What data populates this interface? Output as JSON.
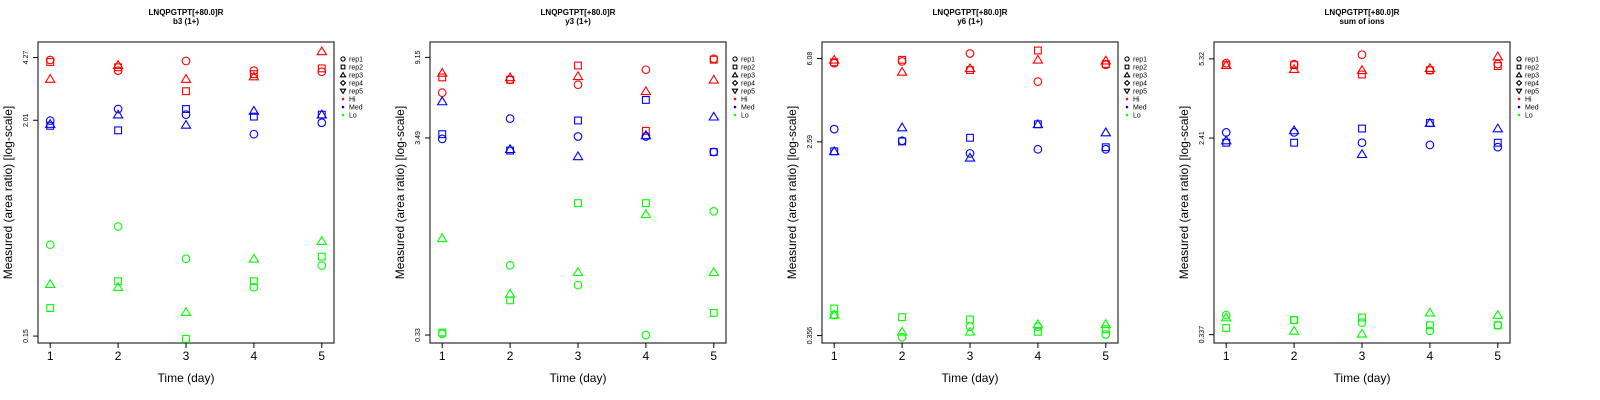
{
  "colors": {
    "Hi": "#ff0000",
    "Med": "#0000ff",
    "Lo": "#00ff00"
  },
  "legend": {
    "reps": [
      {
        "label": "rep1",
        "shape": "circle"
      },
      {
        "label": "rep2",
        "shape": "square"
      },
      {
        "label": "rep3",
        "shape": "triangle"
      },
      {
        "label": "rep4",
        "shape": "diamond"
      },
      {
        "label": "rep5",
        "shape": "triangle-down"
      }
    ],
    "levels": [
      "Hi",
      "Med",
      "Lo"
    ]
  },
  "chart_data": [
    {
      "type": "scatter",
      "title": "LNQPGTPT[+80.0]R",
      "subtitle": "b3 (1+)",
      "xlabel": "Time (day)",
      "ylabel": "Measured (area ratio) [log-scale]",
      "xticks": [
        1,
        2,
        3,
        4,
        5
      ],
      "yticks": [
        {
          "value": 0.15,
          "label": "0.15"
        },
        {
          "value": 2.01,
          "label": "2.01"
        },
        {
          "value": 4.27,
          "label": "4.27"
        }
      ],
      "ylim": [
        0.138,
        5.15
      ],
      "series": [
        {
          "name": "Hi rep1",
          "level": "Hi",
          "shape": "circle",
          "values": [
            4.15,
            3.65,
            4.1,
            3.65,
            3.6
          ]
        },
        {
          "name": "Hi rep2",
          "level": "Hi",
          "shape": "square",
          "values": [
            4.05,
            3.8,
            2.85,
            3.5,
            3.75
          ]
        },
        {
          "name": "Hi rep3",
          "level": "Hi",
          "shape": "triangle",
          "values": [
            3.3,
            3.9,
            3.3,
            3.4,
            4.6
          ]
        },
        {
          "name": "Med rep1",
          "level": "Med",
          "shape": "circle",
          "values": [
            2.0,
            2.3,
            2.15,
            1.7,
            1.95
          ]
        },
        {
          "name": "Med rep2",
          "level": "Med",
          "shape": "square",
          "values": [
            1.88,
            1.78,
            2.3,
            2.1,
            2.15
          ]
        },
        {
          "name": "Med rep3",
          "level": "Med",
          "shape": "triangle",
          "values": [
            1.92,
            2.15,
            1.9,
            2.25,
            2.15
          ]
        },
        {
          "name": "Lo rep1",
          "level": "Lo",
          "shape": "circle",
          "values": [
            0.45,
            0.56,
            0.38,
            0.27,
            0.35
          ]
        },
        {
          "name": "Lo rep2",
          "level": "Lo",
          "shape": "square",
          "values": [
            0.21,
            0.29,
            0.145,
            0.29,
            0.39
          ]
        },
        {
          "name": "Lo rep3",
          "level": "Lo",
          "shape": "triangle",
          "values": [
            0.28,
            0.27,
            0.2,
            0.38,
            0.47
          ]
        }
      ]
    },
    {
      "type": "scatter",
      "title": "LNQPGTPT[+80.0]R",
      "subtitle": "y3 (1+)",
      "xlabel": "Time (day)",
      "ylabel": "Measured (area ratio) [log-scale]",
      "xticks": [
        1,
        2,
        3,
        4,
        5
      ],
      "yticks": [
        {
          "value": 0.33,
          "label": "0.33"
        },
        {
          "value": 3.49,
          "label": "3.49"
        },
        {
          "value": 9.15,
          "label": "9.15"
        }
      ],
      "ylim": [
        0.3,
        11.0
      ],
      "series": [
        {
          "name": "Hi rep1",
          "level": "Hi",
          "shape": "circle",
          "values": [
            6.0,
            7.0,
            6.6,
            7.9,
            9.0
          ]
        },
        {
          "name": "Hi rep2",
          "level": "Hi",
          "shape": "square",
          "values": [
            7.2,
            7.0,
            8.3,
            3.8,
            8.9
          ]
        },
        {
          "name": "Hi rep3",
          "level": "Hi",
          "shape": "triangle",
          "values": [
            7.6,
            7.2,
            7.3,
            6.1,
            7.0
          ]
        },
        {
          "name": "Med rep1",
          "level": "Med",
          "shape": "circle",
          "values": [
            3.45,
            4.4,
            3.55,
            3.55,
            2.95
          ]
        },
        {
          "name": "Med rep2",
          "level": "Med",
          "shape": "square",
          "values": [
            3.65,
            3.0,
            4.3,
            5.5,
            2.95
          ]
        },
        {
          "name": "Med rep3",
          "level": "Med",
          "shape": "triangle",
          "values": [
            5.4,
            3.05,
            2.8,
            3.6,
            4.5
          ]
        },
        {
          "name": "Lo rep1",
          "level": "Lo",
          "shape": "circle",
          "values": [
            0.335,
            0.76,
            0.6,
            0.33,
            1.45
          ]
        },
        {
          "name": "Lo rep2",
          "level": "Lo",
          "shape": "square",
          "values": [
            0.34,
            0.5,
            1.6,
            1.6,
            0.43
          ]
        },
        {
          "name": "Lo rep3",
          "level": "Lo",
          "shape": "triangle",
          "values": [
            1.05,
            0.54,
            0.7,
            1.4,
            0.7
          ]
        }
      ]
    },
    {
      "type": "scatter",
      "title": "LNQPGTPT[+80.0]R",
      "subtitle": "y6 (1+)",
      "xlabel": "Time (day)",
      "ylabel": "Measured (area ratio) [log-scale]",
      "xticks": [
        1,
        2,
        3,
        4,
        5
      ],
      "yticks": [
        {
          "value": 0.356,
          "label": "0.356"
        },
        {
          "value": 2.59,
          "label": "2.59"
        },
        {
          "value": 6.08,
          "label": "6.08"
        }
      ],
      "ylim": [
        0.33,
        7.2
      ],
      "series": [
        {
          "name": "Hi rep1",
          "level": "Hi",
          "shape": "circle",
          "values": [
            5.8,
            5.9,
            6.4,
            4.8,
            5.7
          ]
        },
        {
          "name": "Hi rep2",
          "level": "Hi",
          "shape": "square",
          "values": [
            5.85,
            6.0,
            5.4,
            6.6,
            5.75
          ]
        },
        {
          "name": "Hi rep3",
          "level": "Hi",
          "shape": "triangle",
          "values": [
            6.0,
            5.3,
            5.5,
            6.0,
            5.95
          ]
        },
        {
          "name": "Med rep1",
          "level": "Med",
          "shape": "circle",
          "values": [
            2.95,
            2.62,
            2.3,
            2.4,
            2.4
          ]
        },
        {
          "name": "Med rep2",
          "level": "Med",
          "shape": "square",
          "values": [
            2.35,
            2.6,
            2.7,
            3.1,
            2.45
          ]
        },
        {
          "name": "Med rep3",
          "level": "Med",
          "shape": "triangle",
          "values": [
            2.35,
            3.0,
            2.2,
            3.1,
            2.85
          ]
        },
        {
          "name": "Lo rep1",
          "level": "Lo",
          "shape": "circle",
          "values": [
            0.44,
            0.35,
            0.39,
            0.39,
            0.36
          ]
        },
        {
          "name": "Lo rep2",
          "level": "Lo",
          "shape": "square",
          "values": [
            0.47,
            0.43,
            0.42,
            0.37,
            0.38
          ]
        },
        {
          "name": "Lo rep3",
          "level": "Lo",
          "shape": "triangle",
          "values": [
            0.44,
            0.37,
            0.37,
            0.4,
            0.4
          ]
        }
      ]
    },
    {
      "type": "scatter",
      "title": "LNQPGTPT[+80.0]R",
      "subtitle": "sum of ions",
      "xlabel": "Time (day)",
      "ylabel": "Measured (area ratio) [log-scale]",
      "xticks": [
        1,
        2,
        3,
        4,
        5
      ],
      "yticks": [
        {
          "value": 0.337,
          "label": "0.337"
        },
        {
          "value": 2.41,
          "label": "2.41"
        },
        {
          "value": 5.32,
          "label": "5.32"
        }
      ],
      "ylim": [
        0.31,
        6.3
      ],
      "series": [
        {
          "name": "Hi rep1",
          "level": "Hi",
          "shape": "circle",
          "values": [
            5.1,
            5.05,
            5.55,
            4.75,
            5.05
          ]
        },
        {
          "name": "Hi rep2",
          "level": "Hi",
          "shape": "square",
          "values": [
            5.0,
            5.0,
            4.55,
            4.75,
            4.95
          ]
        },
        {
          "name": "Hi rep3",
          "level": "Hi",
          "shape": "triangle",
          "values": [
            5.0,
            4.8,
            4.75,
            4.85,
            5.45
          ]
        },
        {
          "name": "Med rep1",
          "level": "Med",
          "shape": "circle",
          "values": [
            2.55,
            2.55,
            2.3,
            2.25,
            2.2
          ]
        },
        {
          "name": "Med rep2",
          "level": "Med",
          "shape": "square",
          "values": [
            2.3,
            2.3,
            2.65,
            2.8,
            2.3
          ]
        },
        {
          "name": "Med rep3",
          "level": "Med",
          "shape": "triangle",
          "values": [
            2.35,
            2.6,
            2.05,
            2.8,
            2.65
          ]
        },
        {
          "name": "Lo rep1",
          "level": "Lo",
          "shape": "circle",
          "values": [
            0.41,
            0.39,
            0.38,
            0.35,
            0.37
          ]
        },
        {
          "name": "Lo rep2",
          "level": "Lo",
          "shape": "square",
          "values": [
            0.36,
            0.39,
            0.4,
            0.37,
            0.37
          ]
        },
        {
          "name": "Lo rep3",
          "level": "Lo",
          "shape": "triangle",
          "values": [
            0.4,
            0.35,
            0.34,
            0.42,
            0.41
          ]
        }
      ]
    }
  ]
}
